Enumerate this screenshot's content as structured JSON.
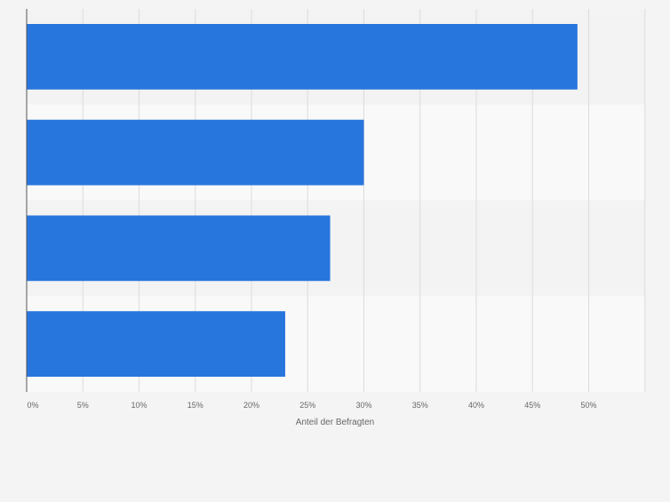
{
  "chart_data": {
    "type": "bar",
    "orientation": "horizontal",
    "categories": [
      "",
      "",
      "",
      ""
    ],
    "values": [
      49,
      30,
      27,
      23
    ],
    "xlabel": "Anteil der Befragten",
    "xlim": [
      0,
      55
    ],
    "xticks": [
      0,
      5,
      10,
      15,
      20,
      25,
      30,
      35,
      40,
      45,
      50
    ],
    "tick_labels": [
      "0%",
      "5%",
      "10%",
      "15%",
      "20%",
      "25%",
      "30%",
      "35%",
      "40%",
      "45%",
      "50%"
    ],
    "grid": true,
    "colors": {
      "bar": "#2776dd",
      "band_dark": "#f3f3f3",
      "band_light": "#f9f9f9",
      "grid": "#dcdcdc",
      "axis": "#555555",
      "text": "#666666"
    }
  }
}
